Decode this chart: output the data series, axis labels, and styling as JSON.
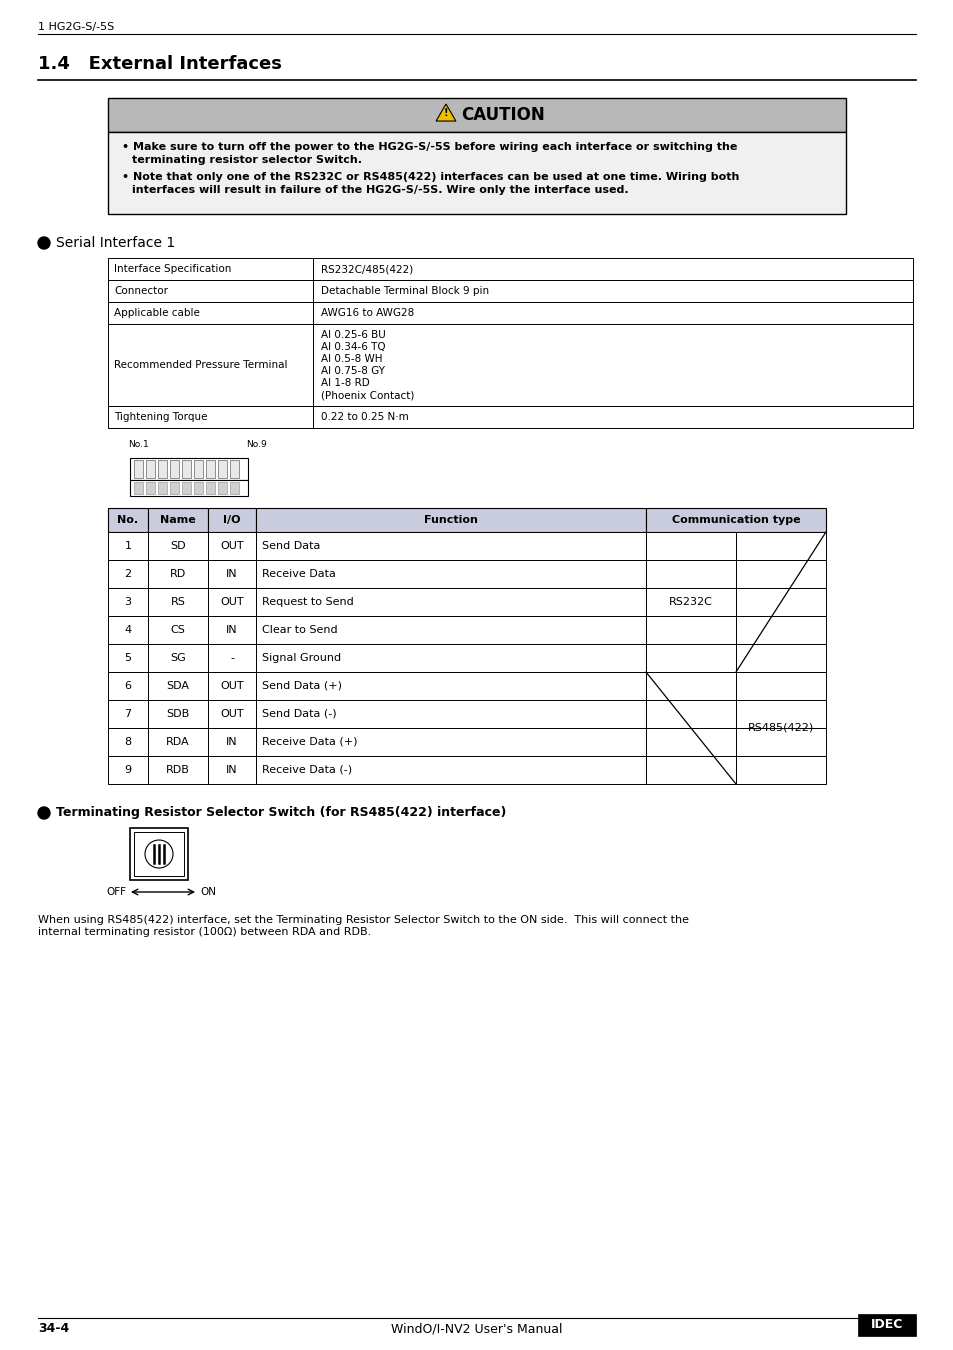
{
  "page_header": "1 HG2G-S/-5S",
  "section_title": "1.4   External Interfaces",
  "caution_title": "CAUTION",
  "caution_line1a": "Make sure to turn off the power to the HG2G-S/-5S before wiring each interface or switching the",
  "caution_line1b": "terminating resistor selector Switch.",
  "caution_line2a": "Note that only one of the RS232C or RS485(422) interfaces can be used at one time. Wiring both",
  "caution_line2b": "interfaces will result in failure of the HG2G-S/-5S. Wire only the interface used.",
  "serial_label": "Serial Interface 1",
  "spec_table": [
    [
      "Interface Specification",
      "RS232C/485(422)"
    ],
    [
      "Connector",
      "Detachable Terminal Block 9 pin"
    ],
    [
      "Applicable cable",
      "AWG16 to AWG28"
    ],
    [
      "Recommended Pressure Terminal",
      "AI 0.25-6 BU\nAI 0.34-6 TQ\nAI 0.5-8 WH\nAI 0.75-8 GY\nAI 1-8 RD\n(Phoenix Contact)"
    ],
    [
      "Tightening Torque",
      "0.22 to 0.25 N·m"
    ]
  ],
  "io_table_headers": [
    "No.",
    "Name",
    "I/O",
    "Function",
    "Communication type"
  ],
  "io_table_rows": [
    [
      "1",
      "SD",
      "OUT",
      "Send Data"
    ],
    [
      "2",
      "RD",
      "IN",
      "Receive Data"
    ],
    [
      "3",
      "RS",
      "OUT",
      "Request to Send"
    ],
    [
      "4",
      "CS",
      "IN",
      "Clear to Send"
    ],
    [
      "5",
      "SG",
      "-",
      "Signal Ground"
    ],
    [
      "6",
      "SDA",
      "OUT",
      "Send Data (+)"
    ],
    [
      "7",
      "SDB",
      "OUT",
      "Send Data (-)"
    ],
    [
      "8",
      "RDA",
      "IN",
      "Receive Data (+)"
    ],
    [
      "9",
      "RDB",
      "IN",
      "Receive Data (-)"
    ]
  ],
  "rs232c_label": "RS232C",
  "rs485_label": "RS485(422)",
  "terminating_title": "Terminating Resistor Selector Switch (for RS485(422) interface)",
  "terminating_text": "When using RS485(422) interface, set the Terminating Resistor Selector Switch to the ON side.  This will connect the\ninternal terminating resistor (100Ω) between RDA and RDB.",
  "footer_left": "34-4",
  "footer_center": "WindO/I-NV2 User's Manual",
  "bg_color": "#ffffff",
  "caution_header_bg": "#b8b8b8",
  "caution_body_bg": "#f0f0f0",
  "table_header_bg": "#c8ccdc",
  "table_border": "#000000"
}
